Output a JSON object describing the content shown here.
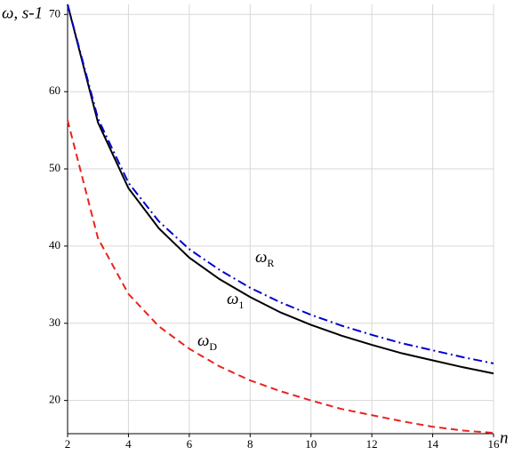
{
  "chart_data": {
    "type": "line",
    "y_label": "ω, s-1",
    "x_label": "n",
    "x": [
      2,
      3,
      4,
      5,
      6,
      7,
      8,
      9,
      10,
      11,
      12,
      13,
      14,
      15,
      16
    ],
    "series": [
      {
        "name": "ω1",
        "color": "#000000",
        "dash": "solid",
        "values": [
          71.3,
          56,
          47.5,
          42.3,
          38.5,
          35.7,
          33.4,
          31.4,
          29.8,
          28.4,
          27.2,
          26.1,
          25.2,
          24.3,
          23.5
        ]
      },
      {
        "name": "ωR",
        "color": "#0000cd",
        "dash": "dashdot",
        "values": [
          71.3,
          56.5,
          48.2,
          43.2,
          39.6,
          36.9,
          34.6,
          32.7,
          31.1,
          29.7,
          28.5,
          27.4,
          26.5,
          25.6,
          24.8
        ]
      },
      {
        "name": "ωD",
        "color": "#e8231e",
        "dash": "dashed",
        "values": [
          56.3,
          41,
          33.8,
          29.6,
          26.7,
          24.4,
          22.6,
          21.2,
          20,
          18.9,
          18.1,
          17.3,
          16.6,
          16.1,
          15.8
        ]
      }
    ],
    "xlim": [
      2,
      16
    ],
    "xticks": [
      2,
      4,
      6,
      8,
      10,
      12,
      14,
      16
    ],
    "ylim": [
      15.7,
      71.3
    ],
    "yticks": [
      20,
      30,
      40,
      50,
      60,
      70
    ],
    "grid": true
  }
}
